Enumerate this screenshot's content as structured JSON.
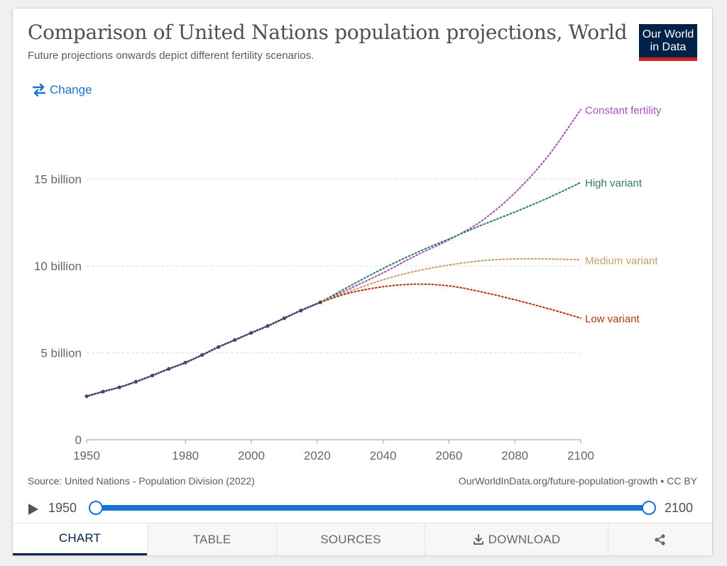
{
  "header": {
    "title": "Comparison of United Nations population projections, World",
    "subtitle": "Future projections onwards depict different fertility scenarios.",
    "logo_line1": "Our World",
    "logo_line2": "in Data",
    "change_label": "Change"
  },
  "chart_data": {
    "type": "line",
    "title": "Comparison of United Nations population projections, World",
    "subtitle": "Future projections onwards depict different fertility scenarios.",
    "xlim": [
      1950,
      2100
    ],
    "ylim": [
      0,
      19.5
    ],
    "x_ticks": [
      "1950",
      "1980",
      "2000",
      "2020",
      "2040",
      "2060",
      "2080",
      "2100"
    ],
    "y_ticks": [
      {
        "value": 0,
        "label": "0"
      },
      {
        "value": 5,
        "label": "5 billion"
      },
      {
        "value": 10,
        "label": "10 billion"
      },
      {
        "value": 15,
        "label": "15 billion"
      }
    ],
    "y_unit": "billion",
    "grid": "horizontal dashed",
    "series": [
      {
        "name": "",
        "color": "#3d4b6b",
        "style": "dotted-solid",
        "x": [
          1950,
          1955,
          1960,
          1965,
          1970,
          1975,
          1980,
          1985,
          1990,
          1995,
          2000,
          2005,
          2010,
          2015,
          2021
        ],
        "y": [
          2.5,
          2.77,
          3.02,
          3.34,
          3.7,
          4.08,
          4.44,
          4.87,
          5.33,
          5.74,
          6.15,
          6.55,
          6.99,
          7.43,
          7.91
        ]
      },
      {
        "name": "Constant fertility",
        "color": "#a652ba",
        "style": "dotted",
        "x": [
          2021,
          2030,
          2040,
          2050,
          2060,
          2070,
          2080,
          2090,
          2100
        ],
        "y": [
          7.91,
          8.7,
          9.6,
          10.6,
          11.5,
          12.6,
          14.2,
          16.3,
          19.0
        ]
      },
      {
        "name": "High variant",
        "color": "#2c7c6b",
        "style": "dotted",
        "x": [
          2021,
          2030,
          2040,
          2050,
          2060,
          2070,
          2080,
          2090,
          2100
        ],
        "y": [
          7.91,
          8.85,
          9.85,
          10.75,
          11.55,
          12.35,
          13.1,
          13.9,
          14.8
        ]
      },
      {
        "name": "Medium variant",
        "color": "#c59f6c",
        "style": "dotted",
        "x": [
          2021,
          2030,
          2040,
          2050,
          2060,
          2070,
          2080,
          2090,
          2100
        ],
        "y": [
          7.91,
          8.55,
          9.2,
          9.7,
          10.05,
          10.3,
          10.4,
          10.4,
          10.35
        ]
      },
      {
        "name": "Low variant",
        "color": "#b13507",
        "style": "dotted",
        "x": [
          2021,
          2030,
          2040,
          2050,
          2060,
          2070,
          2080,
          2090,
          2100
        ],
        "y": [
          7.91,
          8.45,
          8.8,
          8.95,
          8.85,
          8.5,
          8.05,
          7.55,
          7.0
        ]
      }
    ]
  },
  "footer": {
    "source": "Source: United Nations - Population Division (2022)",
    "url": "OurWorldInData.org/future-population-growth • CC BY"
  },
  "timeline": {
    "start_label": "1950",
    "end_label": "2100",
    "start_value": 1950,
    "end_value": 2100
  },
  "tabs": [
    {
      "label": "CHART",
      "icon": "",
      "active": true
    },
    {
      "label": "TABLE",
      "icon": "",
      "active": false
    },
    {
      "label": "SOURCES",
      "icon": "",
      "active": false
    },
    {
      "label": "DOWNLOAD",
      "icon": "download-icon",
      "active": false
    },
    {
      "label": "",
      "icon": "share-icon",
      "active": false
    }
  ]
}
